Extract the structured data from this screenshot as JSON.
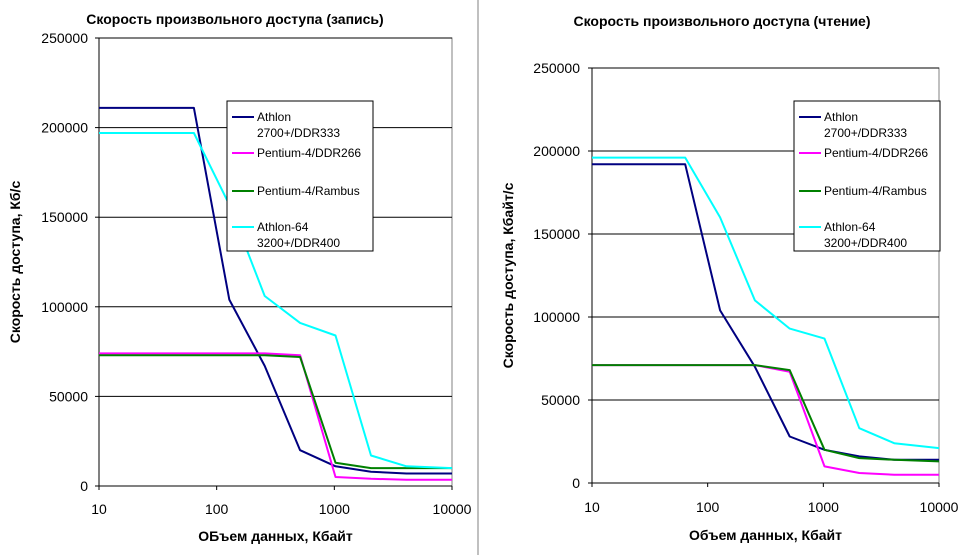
{
  "chart_data": [
    {
      "type": "line",
      "title": "Скорость произвольного доступа (запись)",
      "xlabel": "ОБъем данных, Кбайт",
      "ylabel": "Скорость доступа, Кб/с",
      "xscale": "log",
      "xlim": [
        10,
        10000
      ],
      "ylim": [
        0,
        250000
      ],
      "xticks": [
        "10",
        "100",
        "1000",
        "10000"
      ],
      "yticks": [
        "0",
        "50000",
        "100000",
        "150000",
        "200000",
        "250000"
      ],
      "grid": "horizontal",
      "legend_position": "upper-right",
      "x": [
        10,
        64,
        128,
        256,
        512,
        1024,
        2048,
        4096,
        10000
      ],
      "series": [
        {
          "name": "Athlon 2700+/DDR333",
          "legend_lines": [
            "Athlon",
            "2700+/DDR333"
          ],
          "color": "#000080",
          "values": [
            211000,
            211000,
            104000,
            67000,
            20000,
            11000,
            8000,
            7000,
            7000
          ]
        },
        {
          "name": "Pentium-4/DDR266",
          "legend_lines": [
            "Pentium-4/DDR266"
          ],
          "color": "#ff00ff",
          "values": [
            74000,
            74000,
            74000,
            74000,
            73000,
            5000,
            4000,
            3500,
            3500
          ]
        },
        {
          "name": "Pentium-4/Rambus",
          "legend_lines": [
            "Pentium-4/Rambus"
          ],
          "color": "#008000",
          "values": [
            73000,
            73000,
            73000,
            73000,
            72000,
            13000,
            10000,
            10000,
            10000
          ]
        },
        {
          "name": "Athlon-64 3200+/DDR400",
          "legend_lines": [
            "Athlon-64",
            "3200+/DDR400"
          ],
          "color": "#00ffff",
          "values": [
            197000,
            197000,
            157000,
            106000,
            91000,
            84000,
            17000,
            11000,
            10000
          ]
        }
      ]
    },
    {
      "type": "line",
      "title": "Скорость произвольного доступа (чтение)",
      "xlabel": "Объем данных, Кбайт",
      "ylabel": "Скорость доступа, Кбайт/с",
      "xscale": "log",
      "xlim": [
        10,
        10000
      ],
      "ylim": [
        0,
        250000
      ],
      "xticks": [
        "10",
        "100",
        "1000",
        "10000"
      ],
      "yticks": [
        "0",
        "50000",
        "100000",
        "150000",
        "200000",
        "250000"
      ],
      "grid": "horizontal",
      "legend_position": "upper-right",
      "x": [
        10,
        64,
        128,
        256,
        512,
        1024,
        2048,
        4096,
        10000
      ],
      "series": [
        {
          "name": "Athlon 2700+/DDR333",
          "legend_lines": [
            "Athlon",
            "2700+/DDR333"
          ],
          "color": "#000080",
          "values": [
            192000,
            192000,
            104000,
            70000,
            28000,
            20000,
            16000,
            14000,
            14000
          ]
        },
        {
          "name": "Pentium-4/DDR266",
          "legend_lines": [
            "Pentium-4/DDR266"
          ],
          "color": "#ff00ff",
          "values": [
            71000,
            71000,
            71000,
            71000,
            67000,
            10000,
            6000,
            5000,
            5000
          ]
        },
        {
          "name": "Pentium-4/Rambus",
          "legend_lines": [
            "Pentium-4/Rambus"
          ],
          "color": "#008000",
          "values": [
            71000,
            71000,
            71000,
            71000,
            68000,
            20000,
            15000,
            14000,
            13000
          ]
        },
        {
          "name": "Athlon-64 3200+/DDR400",
          "legend_lines": [
            "Athlon-64",
            "3200+/DDR400"
          ],
          "color": "#00ffff",
          "values": [
            196000,
            196000,
            160000,
            110000,
            93000,
            87000,
            33000,
            24000,
            21000
          ]
        }
      ]
    }
  ]
}
